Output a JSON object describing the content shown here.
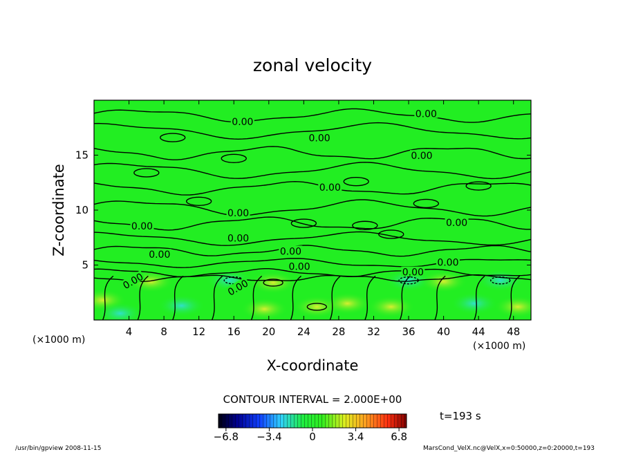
{
  "chart_data": {
    "type": "heatmap",
    "title": "zonal velocity",
    "xlabel": "X-coordinate",
    "ylabel": "Z-coordinate",
    "x_unit": "(×1000 m)",
    "z_unit": "(×1000 m)",
    "xlim": [
      0,
      50
    ],
    "ylim": [
      0,
      20
    ],
    "xticks": [
      4,
      8,
      12,
      16,
      20,
      24,
      28,
      32,
      36,
      40,
      44,
      48
    ],
    "yticks": [
      5,
      10,
      15
    ],
    "contour_interval_text": "CONTOUR INTERVAL = 2.000E+00",
    "contour_label": "0.00",
    "contour_labels": [
      {
        "x": 17.0,
        "z": 18.0
      },
      {
        "x": 25.8,
        "z": 16.5
      },
      {
        "x": 38.0,
        "z": 18.7
      },
      {
        "x": 37.5,
        "z": 14.9
      },
      {
        "x": 27.0,
        "z": 12.0
      },
      {
        "x": 16.5,
        "z": 9.7
      },
      {
        "x": 5.5,
        "z": 8.5
      },
      {
        "x": 16.5,
        "z": 7.4
      },
      {
        "x": 41.5,
        "z": 8.8
      },
      {
        "x": 22.5,
        "z": 6.2
      },
      {
        "x": 7.5,
        "z": 5.9
      },
      {
        "x": 23.5,
        "z": 4.8
      },
      {
        "x": 40.5,
        "z": 5.2
      },
      {
        "x": 36.5,
        "z": 4.3
      },
      {
        "x": 4.5,
        "z": 3.5
      },
      {
        "x": 16.5,
        "z": 2.9
      }
    ],
    "colorbar": {
      "min": -6.8,
      "max": 6.8,
      "tick_values": [
        -6.8,
        -3.4,
        0,
        3.4,
        6.8
      ],
      "tick_labels": [
        "−6.8",
        "−3.4",
        "0",
        "3.4",
        "6.8"
      ],
      "colormap": "blue-cyan-green-yellow-red"
    },
    "field_summary": "near-zero (green) above ~4 km; alternating weak positive/negative cells below ~4 km",
    "time_text": "t=193 s"
  },
  "footer": {
    "left": "/usr/bin/gpview   2008-11-15",
    "right": "MarsCond_VelX.nc@VelX,x=0:50000,z=0:20000,t=193"
  },
  "colors": {
    "field_background": "#22ee22",
    "contour_line": "#000000",
    "frame": "#000000"
  }
}
